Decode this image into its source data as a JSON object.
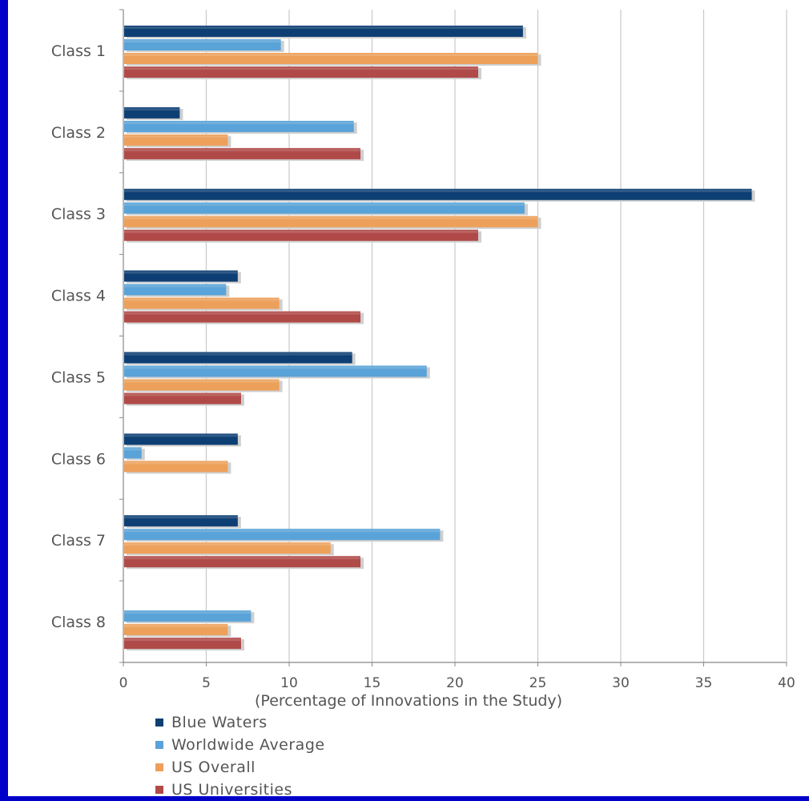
{
  "chart_data": {
    "type": "bar",
    "orientation": "horizontal",
    "categories": [
      "Class 1",
      "Class 2",
      "Class 3",
      "Class 4",
      "Class 5",
      "Class 6",
      "Class 7",
      "Class 8"
    ],
    "series": [
      {
        "name": "Blue Waters",
        "color": "#0e3f74",
        "values": [
          24.1,
          3.4,
          37.9,
          6.9,
          13.8,
          6.9,
          6.9,
          0
        ]
      },
      {
        "name": "Worldwide Average",
        "color": "#5aa3d8",
        "values": [
          9.5,
          13.9,
          24.2,
          6.2,
          18.3,
          1.1,
          19.1,
          7.7
        ]
      },
      {
        "name": "US Overall",
        "color": "#eda05a",
        "values": [
          25.0,
          6.3,
          25.0,
          9.4,
          9.4,
          6.3,
          12.5,
          6.3
        ]
      },
      {
        "name": "US Universities",
        "color": "#b04a48",
        "values": [
          21.4,
          14.3,
          21.4,
          14.3,
          7.1,
          0,
          14.3,
          7.1
        ]
      }
    ],
    "xlim": [
      0,
      40
    ],
    "xticks": [
      "0",
      "5",
      "10",
      "15",
      "20",
      "25",
      "30",
      "35",
      "40"
    ],
    "xlabel": "(Percentage of Innovations in the Study)",
    "title": "",
    "grid": true,
    "legend_position": "bottom-left"
  }
}
